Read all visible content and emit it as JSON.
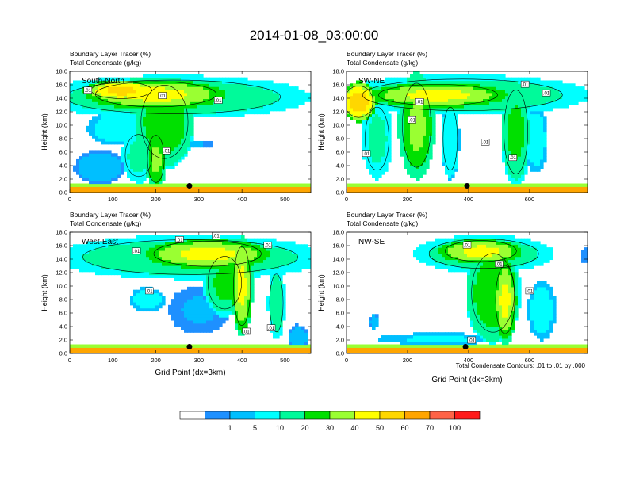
{
  "figure": {
    "title": "2014-01-08_03:00:00",
    "contour_note": "Total Condensate Contours: .01 to .01 by .000",
    "shared_xlabel": "Grid Point (dx=3km)"
  },
  "colorbar": {
    "bins": [
      {
        "color": "#ffffff",
        "label": ""
      },
      {
        "color": "#1e90ff",
        "label": "1"
      },
      {
        "color": "#00bfff",
        "label": "5"
      },
      {
        "color": "#00ffff",
        "label": "10"
      },
      {
        "color": "#00fa9a",
        "label": "20"
      },
      {
        "color": "#00e000",
        "label": "30"
      },
      {
        "color": "#9aff32",
        "label": "40"
      },
      {
        "color": "#ffff00",
        "label": "50"
      },
      {
        "color": "#ffd700",
        "label": "60"
      },
      {
        "color": "#ffa500",
        "label": "70"
      },
      {
        "color": "#ff6347",
        "label": "100"
      },
      {
        "color": "#ff1a1a",
        "label": ""
      }
    ]
  },
  "chart_data": [
    {
      "type": "heatmap",
      "subtitle_line1": "Boundary Layer Tracer    (%)",
      "subtitle_line2": "Total Condensate    (g/kg)",
      "panel_label": "South-North",
      "ylabel": "Height (km)",
      "xlabel": "",
      "xlim": [
        0,
        560
      ],
      "ylim": [
        0,
        18
      ],
      "xticks": [
        "0",
        "100",
        "200",
        "300",
        "400",
        "500"
      ],
      "xtick_values": [
        0,
        100,
        200,
        300,
        400,
        500
      ],
      "yticks": [
        "0.0",
        "2.0",
        "4.0",
        "6.0",
        "8.0",
        "10.0",
        "12.0",
        "14.0",
        "16.0",
        "18.0"
      ],
      "contour_labels": [
        {
          "text": ".01",
          "x": 42,
          "y": 15.2
        },
        {
          "text": ".01",
          "x": 215,
          "y": 14.4
        },
        {
          "text": ".01",
          "x": 345,
          "y": 13.7
        },
        {
          "text": ".01",
          "x": 225,
          "y": 6.2
        }
      ],
      "marker": {
        "x": 278,
        "y": 1.0
      },
      "plumes": [
        {
          "xc": 240,
          "yc": 14.2,
          "rx": 320,
          "ry": 3.2,
          "v": 30
        },
        {
          "xc": 200,
          "yc": 14.6,
          "rx": 180,
          "ry": 2.4,
          "v": 55
        },
        {
          "xc": 120,
          "yc": 15.2,
          "rx": 90,
          "ry": 1.6,
          "v": 65
        },
        {
          "xc": 220,
          "yc": 10.5,
          "rx": 70,
          "ry": 7,
          "v": 40
        },
        {
          "xc": 110,
          "yc": 9.5,
          "rx": 70,
          "ry": 2.5,
          "v": 15
        },
        {
          "xc": 70,
          "yc": 3.8,
          "rx": 60,
          "ry": 2.5,
          "v": 8
        },
        {
          "xc": 160,
          "yc": 5.5,
          "rx": 40,
          "ry": 4,
          "v": 25
        },
        {
          "xc": 200,
          "yc": 5.0,
          "rx": 25,
          "ry": 4.5,
          "v": 45
        },
        {
          "xc": 292,
          "yc": 7.2,
          "rx": 40,
          "ry": 0.6,
          "v": 6
        }
      ]
    },
    {
      "type": "heatmap",
      "subtitle_line1": "Boundary Layer Tracer    (%)",
      "subtitle_line2": "Total Condensate    (g/kg)",
      "panel_label": "SW-NE",
      "ylabel": "Height (km)",
      "xlabel": "",
      "xlim": [
        0,
        790
      ],
      "ylim": [
        0,
        18
      ],
      "xticks": [
        "0",
        "200",
        "400",
        "600"
      ],
      "xtick_values": [
        0,
        200,
        400,
        600
      ],
      "yticks": [
        "0.0",
        "2.0",
        "4.0",
        "6.0",
        "8.0",
        "10.0",
        "12.0",
        "14.0",
        "16.0",
        "18.0"
      ],
      "contour_labels": [
        {
          "text": ".01",
          "x": 585,
          "y": 16.1
        },
        {
          "text": ".01",
          "x": 655,
          "y": 14.8
        },
        {
          "text": ".01",
          "x": 240,
          "y": 13.5
        },
        {
          "text": ".01",
          "x": 215,
          "y": 10.8
        },
        {
          "text": ".01",
          "x": 455,
          "y": 7.5
        },
        {
          "text": ".01",
          "x": 65,
          "y": 5.8
        },
        {
          "text": ".01",
          "x": 545,
          "y": 5.2
        }
      ],
      "marker": {
        "x": 395,
        "y": 1.0
      },
      "plumes": [
        {
          "xc": 380,
          "yc": 14.5,
          "rx": 420,
          "ry": 3.0,
          "v": 30
        },
        {
          "xc": 300,
          "yc": 14.5,
          "rx": 250,
          "ry": 2.0,
          "v": 55
        },
        {
          "xc": 40,
          "yc": 13.5,
          "rx": 60,
          "ry": 3.0,
          "v": 70
        },
        {
          "xc": 230,
          "yc": 10.0,
          "rx": 60,
          "ry": 8,
          "v": 45
        },
        {
          "xc": 100,
          "yc": 8.0,
          "rx": 50,
          "ry": 6,
          "v": 25
        },
        {
          "xc": 555,
          "yc": 9.0,
          "rx": 50,
          "ry": 8,
          "v": 35
        },
        {
          "xc": 340,
          "yc": 8.0,
          "rx": 30,
          "ry": 6,
          "v": 20
        },
        {
          "xc": 620,
          "yc": 8.0,
          "rx": 40,
          "ry": 5,
          "v": 15
        }
      ]
    },
    {
      "type": "heatmap",
      "subtitle_line1": "Boundary Layer Tracer    (%)",
      "subtitle_line2": "Total Condensate    (g/kg)",
      "panel_label": "West-East",
      "ylabel": "Height (km)",
      "xlabel": "Grid Point (dx=3km)",
      "xlim": [
        0,
        560
      ],
      "ylim": [
        0,
        18
      ],
      "xticks": [
        "0",
        "100",
        "200",
        "300",
        "400",
        "500"
      ],
      "xtick_values": [
        0,
        100,
        200,
        300,
        400,
        500
      ],
      "yticks": [
        "0.0",
        "2.0",
        "4.0",
        "6.0",
        "8.0",
        "10.0",
        "12.0",
        "14.0",
        "16.0",
        "18.0"
      ],
      "contour_labels": [
        {
          "text": ".01",
          "x": 340,
          "y": 17.5
        },
        {
          "text": ".01",
          "x": 255,
          "y": 16.9
        },
        {
          "text": ".01",
          "x": 460,
          "y": 16.1
        },
        {
          "text": ".01",
          "x": 155,
          "y": 15.2
        },
        {
          "text": ".01",
          "x": 185,
          "y": 9.3
        },
        {
          "text": ".01",
          "x": 410,
          "y": 3.3
        },
        {
          "text": ".01",
          "x": 468,
          "y": 3.8
        }
      ],
      "marker": {
        "x": 278,
        "y": 1.0
      },
      "plumes": [
        {
          "xc": 280,
          "yc": 14.3,
          "rx": 320,
          "ry": 3.3,
          "v": 30
        },
        {
          "xc": 320,
          "yc": 14.8,
          "rx": 160,
          "ry": 2.4,
          "v": 55
        },
        {
          "xc": 400,
          "yc": 10.0,
          "rx": 25,
          "ry": 7.5,
          "v": 55
        },
        {
          "xc": 360,
          "yc": 10.5,
          "rx": 50,
          "ry": 5,
          "v": 35
        },
        {
          "xc": 480,
          "yc": 7.5,
          "rx": 20,
          "ry": 5.5,
          "v": 30
        },
        {
          "xc": 180,
          "yc": 8.0,
          "rx": 40,
          "ry": 1.8,
          "v": 15
        },
        {
          "xc": 300,
          "yc": 6.5,
          "rx": 70,
          "ry": 3.5,
          "v": 6
        },
        {
          "xc": 530,
          "yc": 2.5,
          "rx": 25,
          "ry": 1.8,
          "v": 8
        }
      ]
    },
    {
      "type": "heatmap",
      "subtitle_line1": "Boundary Layer Tracer    (%)",
      "subtitle_line2": "Total Condensate    (g/kg)",
      "panel_label": "NW-SE",
      "ylabel": "Height (km)",
      "xlabel": "",
      "xlim": [
        0,
        790
      ],
      "ylim": [
        0,
        18
      ],
      "xticks": [
        "0",
        "200",
        "400",
        "600"
      ],
      "xtick_values": [
        0,
        200,
        400,
        600
      ],
      "yticks": [
        "0.0",
        "2.0",
        "4.0",
        "6.0",
        "8.0",
        "10.0",
        "12.0",
        "14.0",
        "16.0",
        "18.0"
      ],
      "contour_labels": [
        {
          "text": ".01",
          "x": 395,
          "y": 16.1
        },
        {
          "text": ".01",
          "x": 500,
          "y": 13.3
        },
        {
          "text": ".01",
          "x": 600,
          "y": 9.3
        },
        {
          "text": ".01",
          "x": 410,
          "y": 2.0
        }
      ],
      "marker": {
        "x": 390,
        "y": 1.0
      },
      "plumes": [
        {
          "xc": 450,
          "yc": 14.8,
          "rx": 230,
          "ry": 2.8,
          "v": 30
        },
        {
          "xc": 440,
          "yc": 15.2,
          "rx": 150,
          "ry": 2.0,
          "v": 55
        },
        {
          "xc": 480,
          "yc": 9.0,
          "rx": 90,
          "ry": 7.5,
          "v": 40
        },
        {
          "xc": 520,
          "yc": 8.0,
          "rx": 40,
          "ry": 6.5,
          "v": 55
        },
        {
          "xc": 640,
          "yc": 6.5,
          "rx": 45,
          "ry": 4.5,
          "v": 15
        },
        {
          "xc": 90,
          "yc": 4.8,
          "rx": 15,
          "ry": 1.2,
          "v": 8
        },
        {
          "xc": 300,
          "yc": 2.2,
          "rx": 200,
          "ry": 0.8,
          "v": 12
        },
        {
          "xc": 785,
          "yc": 14.5,
          "rx": 15,
          "ry": 1.2,
          "v": 3
        }
      ]
    }
  ]
}
